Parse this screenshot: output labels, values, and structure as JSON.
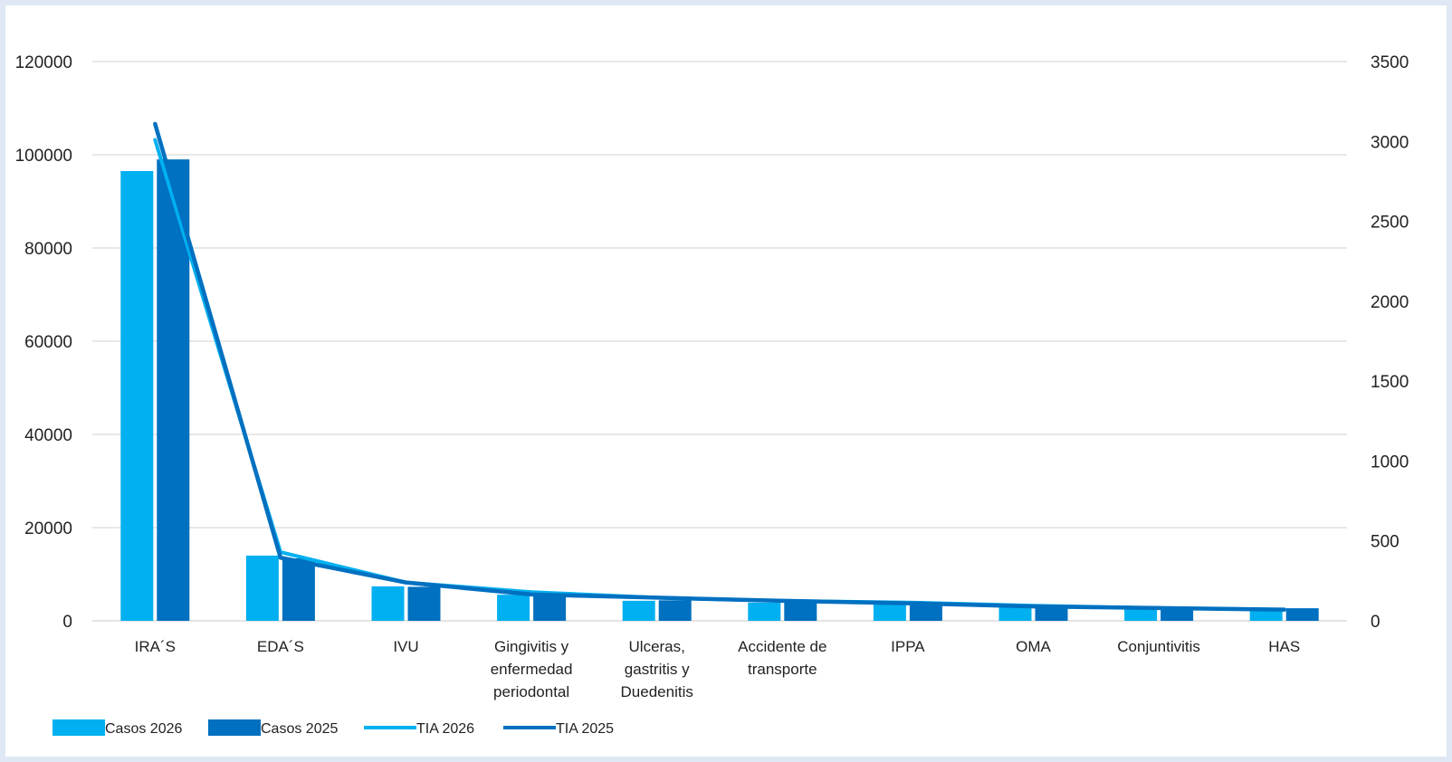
{
  "chart_data": {
    "type": "bar",
    "title": "",
    "xlabel": "",
    "ylabel": "",
    "categories": [
      [
        "IRA´S"
      ],
      [
        "EDA´S"
      ],
      [
        "IVU"
      ],
      [
        "Gingivitis y",
        "enfermedad",
        "periodontal"
      ],
      [
        "Ulceras,",
        "gastritis y",
        "Duedenitis"
      ],
      [
        "Accidente de",
        "transporte"
      ],
      [
        "IPPA"
      ],
      [
        "OMA"
      ],
      [
        "Conjuntivitis"
      ],
      [
        "HAS"
      ]
    ],
    "ylim": [
      0,
      120000
    ],
    "y_ticks": [
      "0",
      "20000",
      "40000",
      "60000",
      "80000",
      "100000",
      "120000"
    ],
    "y2lim": [
      0,
      3500
    ],
    "y2_ticks": [
      "0",
      "500",
      "1000",
      "1500",
      "2000",
      "2500",
      "3000",
      "3500"
    ],
    "grid": true,
    "legend_position": "bottom-left",
    "series": [
      {
        "name": "Casos 2026",
        "kind": "bar",
        "axis": "left",
        "color": "#00b0f0",
        "values": [
          96500,
          14000,
          7400,
          5600,
          4300,
          3900,
          3600,
          2900,
          2500,
          2300
        ]
      },
      {
        "name": "Casos 2025",
        "kind": "bar",
        "axis": "left",
        "color": "#0070c0",
        "values": [
          99000,
          13400,
          7300,
          5600,
          4400,
          4000,
          3800,
          3100,
          2700,
          2700
        ]
      },
      {
        "name": "TIA 2026",
        "kind": "line",
        "axis": "right",
        "color": "#00b0f0",
        "values": [
          3010,
          430,
          240,
          180,
          145,
          125,
          115,
          95,
          80,
          70
        ]
      },
      {
        "name": "TIA 2025",
        "kind": "line",
        "axis": "right",
        "color": "#0070c0",
        "values": [
          3110,
          395,
          240,
          165,
          145,
          125,
          110,
          90,
          80,
          70
        ]
      }
    ]
  }
}
